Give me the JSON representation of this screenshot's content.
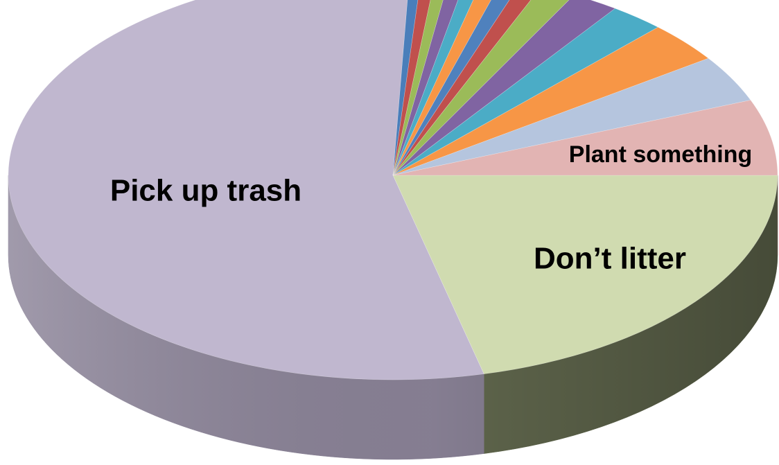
{
  "chart_data": {
    "type": "pie",
    "style": "3d",
    "title": "",
    "legend": "none",
    "start_angle_deg": 0,
    "direction": "clockwise",
    "slices": [
      {
        "label": "Don't litter",
        "display_label": "Don’t litter",
        "value": 21.2,
        "color": "#d0dbb0",
        "side_color": "#646b50",
        "show_label": true
      },
      {
        "label": "Pick up trash",
        "display_label": "Pick up trash",
        "value": 54.5,
        "color": "#c0b7cf",
        "side_color": "#8c8499",
        "show_label": true
      },
      {
        "label": "",
        "display_label": "",
        "value": 0.5,
        "color": "#4a7eba",
        "side_color": "#365e8c",
        "show_label": false
      },
      {
        "label": "",
        "display_label": "",
        "value": 0.6,
        "color": "#c0504d",
        "side_color": "#8c3a38",
        "show_label": false
      },
      {
        "label": "",
        "display_label": "",
        "value": 0.6,
        "color": "#9bbb59",
        "side_color": "#718942",
        "show_label": false
      },
      {
        "label": "",
        "display_label": "",
        "value": 0.7,
        "color": "#8064a2",
        "side_color": "#5e4977",
        "show_label": false
      },
      {
        "label": "",
        "display_label": "",
        "value": 0.7,
        "color": "#4bacc6",
        "side_color": "#377e91",
        "show_label": false
      },
      {
        "label": "",
        "display_label": "",
        "value": 0.8,
        "color": "#f79646",
        "side_color": "#b56e33",
        "show_label": false
      },
      {
        "label": "",
        "display_label": "",
        "value": 0.8,
        "color": "#4f81bd",
        "side_color": "#3a5f8b",
        "show_label": false
      },
      {
        "label": "",
        "display_label": "",
        "value": 0.9,
        "color": "#c0504d",
        "side_color": "#8c3a38",
        "show_label": false
      },
      {
        "label": "",
        "display_label": "",
        "value": 1.5,
        "color": "#9bbb59",
        "side_color": "#718942",
        "show_label": false
      },
      {
        "label": "",
        "display_label": "",
        "value": 2.0,
        "color": "#8064a2",
        "side_color": "#5e4977",
        "show_label": false
      },
      {
        "label": "",
        "display_label": "",
        "value": 2.3,
        "color": "#4bacc6",
        "side_color": "#377e91",
        "show_label": false
      },
      {
        "label": "",
        "display_label": "",
        "value": 3.2,
        "color": "#f79646",
        "side_color": "#b56e33",
        "show_label": false
      },
      {
        "label": "",
        "display_label": "",
        "value": 3.7,
        "color": "#b5c5de",
        "side_color": "#8493a8",
        "show_label": false
      },
      {
        "label": "Plant something",
        "display_label": "Plant something",
        "value": 6.0,
        "color": "#e2b4b3",
        "side_color": "#a88584",
        "show_label": true
      }
    ]
  }
}
